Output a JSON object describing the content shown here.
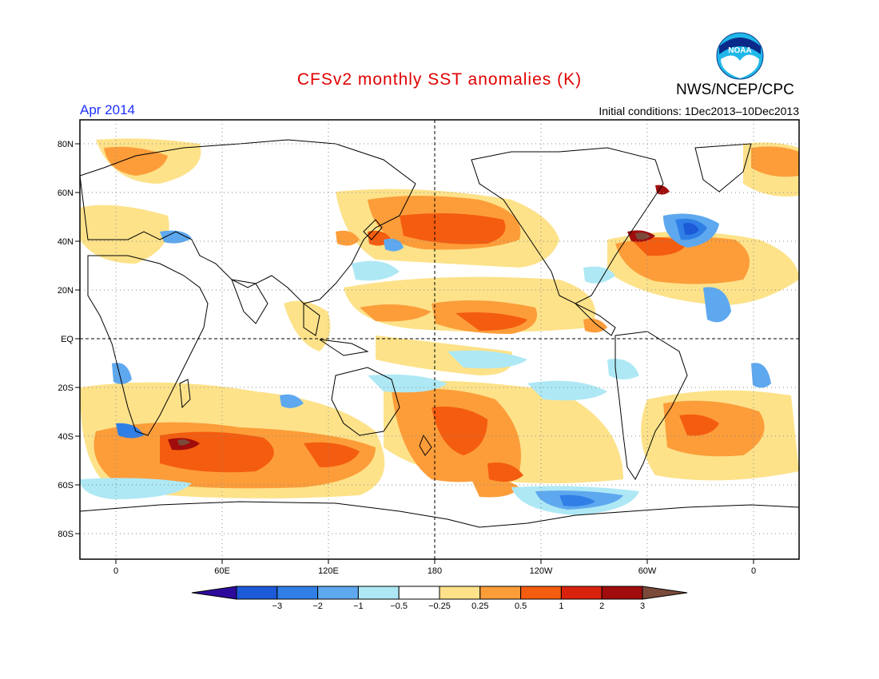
{
  "header": {
    "title": "CFSv2 monthly SST anomalies (K)",
    "organization": "NWS/NCEP/CPC",
    "logo_text": "NOAA",
    "month_label": "Apr 2014",
    "initial_conditions": "Initial conditions: 1Dec2013–10Dec2013"
  },
  "axes": {
    "lat_labels": [
      "80N",
      "60N",
      "40N",
      "20N",
      "EQ",
      "20S",
      "40S",
      "60S",
      "80S"
    ],
    "lon_labels": [
      "0",
      "60E",
      "120E",
      "180",
      "120W",
      "60W",
      "0"
    ]
  },
  "colorbar": {
    "labels": [
      "−3",
      "−2",
      "−1",
      "−0.5",
      "−0.25",
      "0.25",
      "0.5",
      "1",
      "2",
      "3"
    ],
    "colors": [
      "#2e0a9c",
      "#1c5ad8",
      "#2f7fe6",
      "#5ea8ef",
      "#aee8f5",
      "#ffffff",
      "#fde28a",
      "#fc9d3a",
      "#f45c0f",
      "#d9220d",
      "#a10c0c",
      "#7a4a3a"
    ],
    "units": "K"
  },
  "map": {
    "background": "#ffffff",
    "land_outline": "#000000",
    "reference_lines": [
      "equator",
      "180 meridian"
    ]
  }
}
